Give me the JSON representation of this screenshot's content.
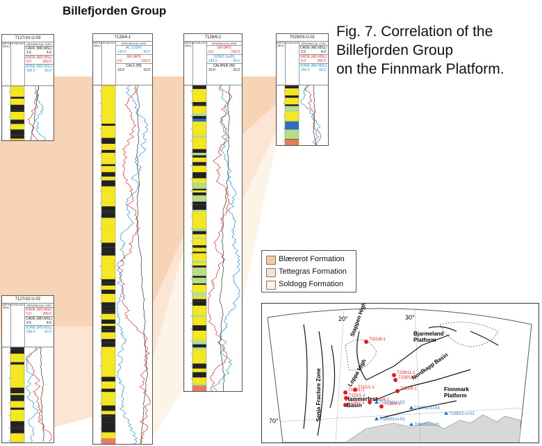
{
  "title": "Billefjorden Group",
  "caption": [
    "Fig. 7. Correlation of the",
    "Billefjorden Group",
    "on the Finnmark Platform."
  ],
  "colors": {
    "blaererot": "#f5c9a3",
    "tettegras": "#fbe0cc",
    "soldogg": "#fdf3e6",
    "sandstone": "#f4e61f",
    "green_lith": "#b8dc86",
    "blue_lith": "#2e6fc0",
    "red_log": "#d02a2a",
    "blue_log": "#1c8fd0",
    "land": "#d8d8d8",
    "well_red": "#e01c24",
    "well_blue": "#1a73c8"
  },
  "column_headers": {
    "depth": "DEPTH (MSL)",
    "lithology": "LITHOLOGY",
    "logs": "GR/SONIC/CAL LOGS"
  },
  "wells": [
    {
      "name": "7127/10-U-03",
      "rows": [
        {
          "label": "CADF (MD.MSL)",
          "min": "2.6",
          "max": "4.0",
          "color": "black"
        },
        {
          "label": "GRDE (MD.MSL)",
          "min": "0.0",
          "max": "300.0",
          "color": "red"
        },
        {
          "label": "SONE (MD.MSL)",
          "min": "160.0",
          "max": "60.0",
          "color": "blue"
        }
      ]
    },
    {
      "name": "7128/4-1",
      "rows": [
        {
          "label": "AC (US/F)",
          "min": "140.0",
          "max": "40.0",
          "color": "blue"
        },
        {
          "label": "GR (API)",
          "min": "0.0",
          "max": "150.0",
          "color": "red"
        },
        {
          "label": "CAL1 (IN)",
          "min": "10.0",
          "max": "16.0",
          "color": "black"
        }
      ]
    },
    {
      "name": "7128/6-1",
      "rows": [
        {
          "label": "GR (API)",
          "min": "0.0",
          "max": "150.0",
          "color": "red"
        },
        {
          "label": "SONIC (us/ft)",
          "min": "140.0",
          "max": "40.0",
          "color": "blue"
        },
        {
          "label": "CALIPER (IN)",
          "min": "10.0",
          "max": "16.0",
          "color": "black"
        }
      ]
    },
    {
      "name": "7029/03-U-01",
      "rows": [
        {
          "label": "CADE (MD.MSL)",
          "min": "2.6",
          "max": "4.0",
          "color": "black"
        },
        {
          "label": "GRDE (MD.MSL)",
          "min": "0.0",
          "max": "300.0",
          "color": "red"
        },
        {
          "label": "SONE (MD.MSL)",
          "min": "160.0",
          "max": "60.0",
          "color": "blue"
        }
      ]
    },
    {
      "name": "7127/10-U-02",
      "rows": [
        {
          "label": "GRDE (MD.MSL)",
          "min": "0.0",
          "max": "300.0",
          "color": "red"
        },
        {
          "label": "CADE (MD.MSL)",
          "min": "2.6",
          "max": "4.0",
          "color": "black"
        },
        {
          "label": "SONE (MD.MSL)",
          "min": "160.0",
          "max": "60.0",
          "color": "blue"
        }
      ]
    }
  ],
  "legend": [
    {
      "label": "Blærerot Formation",
      "color": "#f5c9a3"
    },
    {
      "label": "Tettegras Formation",
      "color": "#fbe0cc"
    },
    {
      "label": "Soldogg Formation",
      "color": "#fdf3e6"
    }
  ],
  "map": {
    "longitudes": [
      "20°",
      "30°"
    ],
    "latitude": "70°",
    "features": [
      "Stappen High",
      "Bjarmeland Platform",
      "Loppa High",
      "Nordkapp Basin",
      "Senja Fracture Zone",
      "Hammerfest Basin",
      "Finnmark Platform"
    ],
    "wells_red": [
      "7321/8-1",
      "7226/11-1",
      "7229/11-1",
      "7228/9-1",
      "7128/6-1",
      "7128/4-1",
      "7120/1-1",
      "7121/1-1",
      "7120/1-2",
      "7120/7-1"
    ],
    "wells_blue": [
      "7127/10-U-02",
      "7127/10-U-03",
      "7128/12-U-01",
      "7029/03-U-01",
      "7030/03-U-01"
    ],
    "wells_red_unreadable": [
      "1",
      "1"
    ]
  }
}
